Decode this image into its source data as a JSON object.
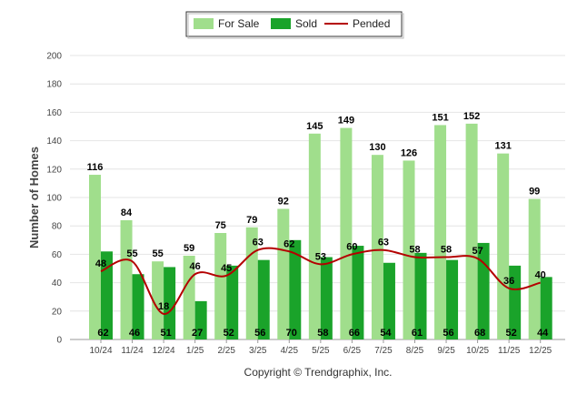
{
  "chart_data": {
    "type": "bar",
    "title": "",
    "ylabel": "Number of Homes",
    "xlabel": "",
    "ylim": [
      0,
      200
    ],
    "yticks": [
      0,
      20,
      40,
      60,
      80,
      100,
      120,
      140,
      160,
      180,
      200
    ],
    "grid": true,
    "legend_position": "top-center",
    "categories": [
      "10/24",
      "11/24",
      "12/24",
      "1/25",
      "2/25",
      "3/25",
      "4/25",
      "5/25",
      "6/25",
      "7/25",
      "8/25",
      "9/25",
      "10/25",
      "11/25",
      "12/25"
    ],
    "series": [
      {
        "name": "For Sale",
        "kind": "bar",
        "color": "#a0de8c",
        "values": [
          116,
          84,
          55,
          59,
          75,
          79,
          92,
          145,
          149,
          130,
          126,
          151,
          152,
          131,
          99
        ]
      },
      {
        "name": "Sold",
        "kind": "bar",
        "color": "#1aa32a",
        "values": [
          62,
          46,
          51,
          27,
          52,
          56,
          70,
          58,
          66,
          54,
          61,
          56,
          68,
          52,
          44
        ]
      },
      {
        "name": "Pended",
        "kind": "line",
        "color": "#b40000",
        "values": [
          48,
          55,
          18,
          46,
          45,
          63,
          62,
          53,
          60,
          63,
          58,
          58,
          57,
          36,
          40
        ]
      }
    ]
  },
  "footer": {
    "copyright": "Copyright © Trendgraphix, Inc."
  }
}
